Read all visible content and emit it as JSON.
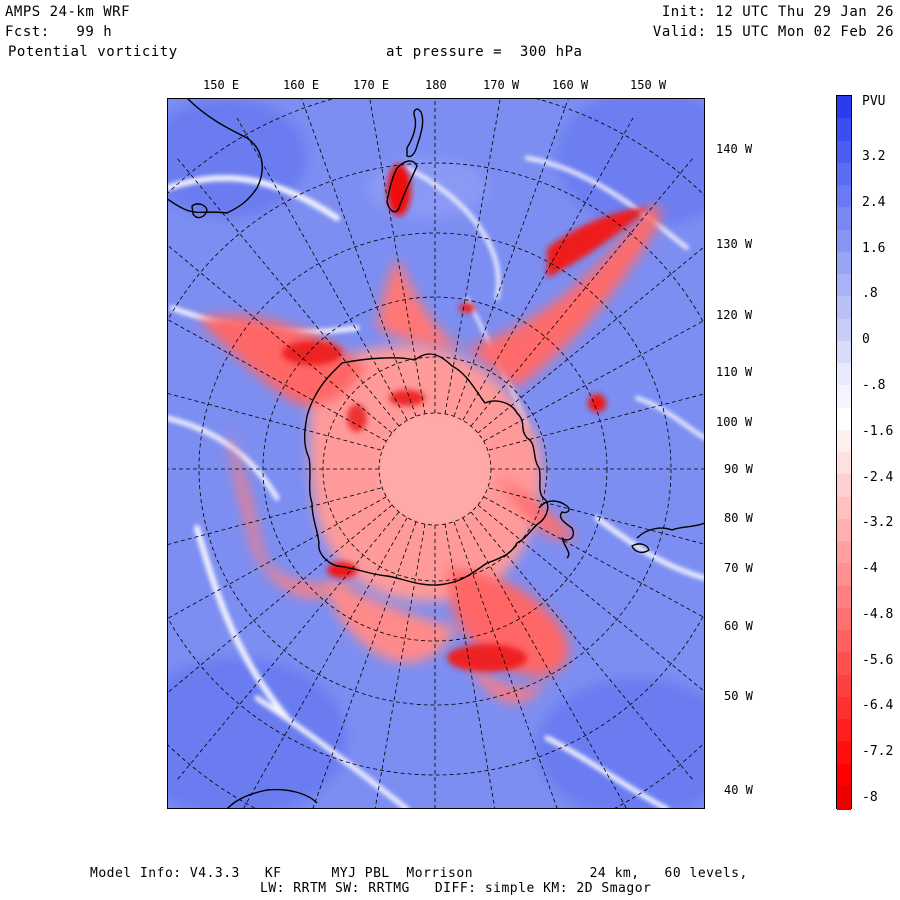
{
  "header": {
    "model": "AMPS 24-km WRF",
    "forecast": "Fcst:   99 h",
    "field": "Potential vorticity",
    "pressure": "at pressure =  300 hPa",
    "init": "Init: 12 UTC Thu 29 Jan 26",
    "valid": "Valid: 15 UTC Mon 02 Feb 26"
  },
  "map": {
    "top_labels": [
      "150 E",
      "160 E",
      "170 E",
      "180",
      "170 W",
      "160 W",
      "150 W"
    ],
    "right_labels": [
      "140 W",
      "130 W",
      "120 W",
      "110 W",
      "100 W",
      "90 W",
      "80 W",
      "70 W",
      "60 W",
      "50 W",
      "40 W"
    ]
  },
  "colorbar": {
    "unit": "PVU",
    "ticks": [
      "3.2",
      "2.4",
      "1.6",
      ".8",
      "0",
      "-.8",
      "-1.6",
      "-2.4",
      "-3.2",
      "-4",
      "-4.8",
      "-5.6",
      "-6.4",
      "-7.2",
      "-8"
    ],
    "colors": [
      "#2a3cf0",
      "#3a4ef2",
      "#4a5ef2",
      "#5a6cf2",
      "#6a7af2",
      "#7888f2",
      "#8896f2",
      "#98a4f4",
      "#a8b2f4",
      "#b8c0f6",
      "#c8ccf8",
      "#d8dcfa",
      "#e8eafc",
      "#f4f4fe",
      "#ffffff",
      "#fff0f0",
      "#ffe0e0",
      "#ffd0d0",
      "#ffc0c0",
      "#ffb0b0",
      "#ffa0a0",
      "#ff9090",
      "#ff8080",
      "#ff7070",
      "#ff6060",
      "#ff5050",
      "#ff4040",
      "#ff3030",
      "#ff2020",
      "#ff1010",
      "#ff0000",
      "#ee0000"
    ]
  },
  "footer": {
    "line1": "Model Info: V4.3.3   KF      MYJ PBL  Morrison              24 km,   60 levels,",
    "line2": "LW: RRTM SW: RRTMG   DIFF: simple KM: 2D Smagor"
  }
}
